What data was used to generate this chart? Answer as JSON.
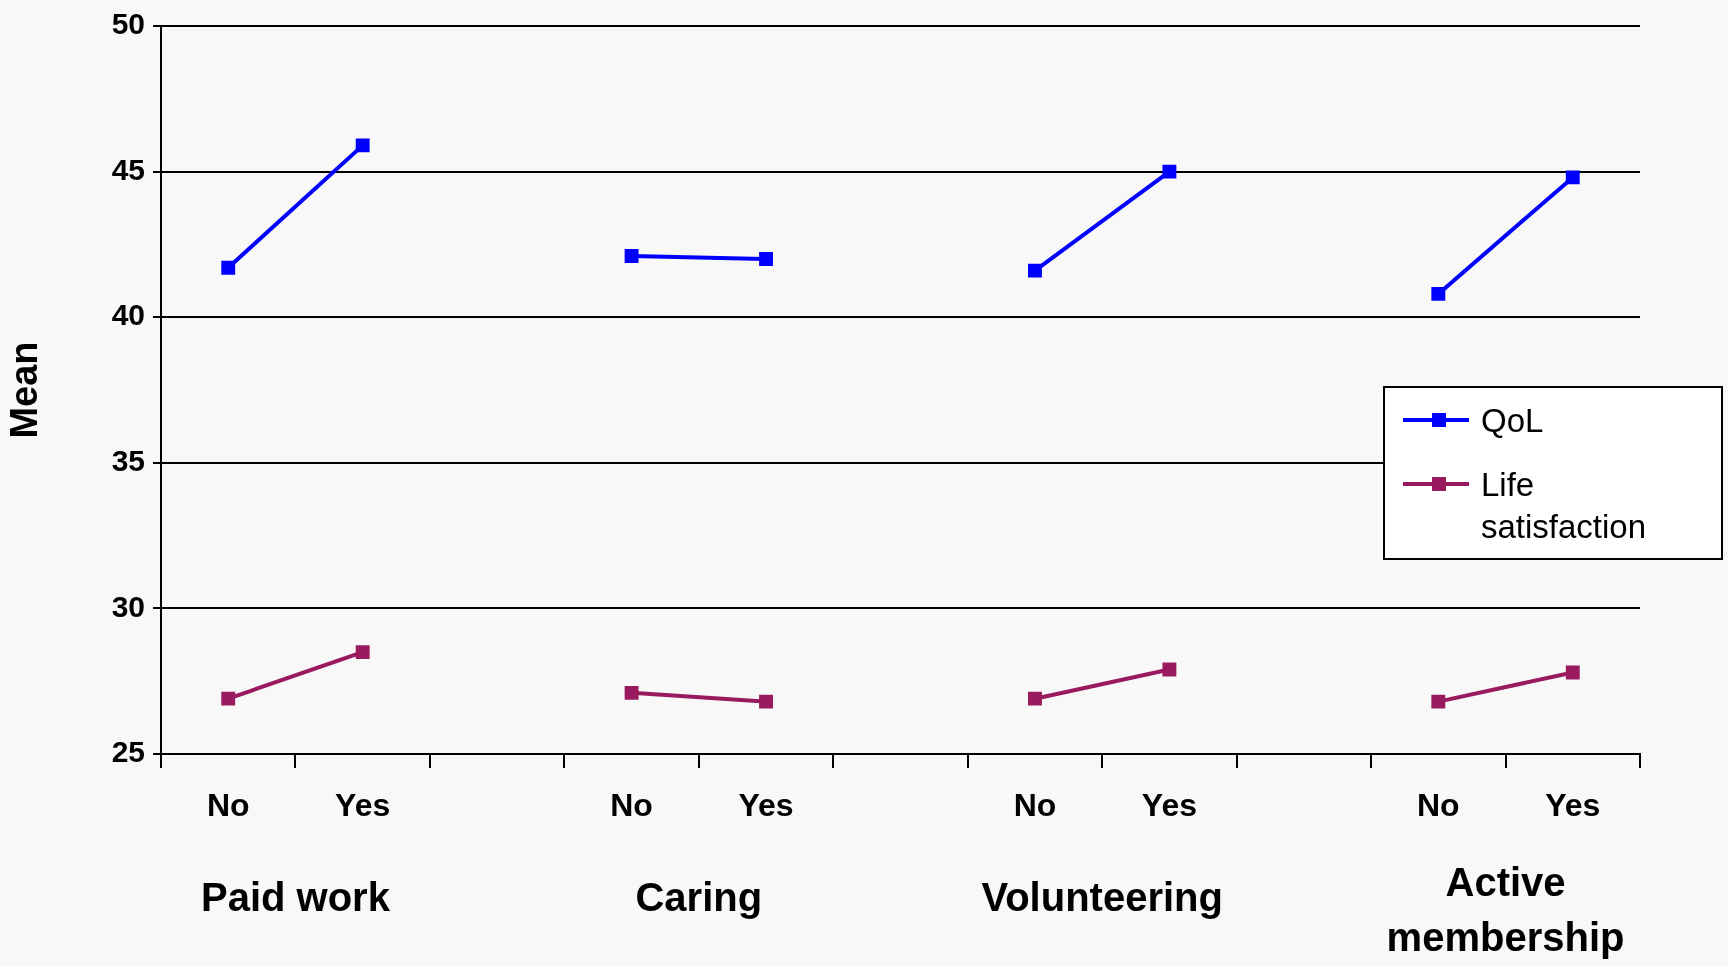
{
  "chart_data": {
    "type": "line",
    "ylabel": "Mean",
    "categories": [
      "No",
      "Yes",
      null,
      "No",
      "Yes",
      null,
      "No",
      "Yes",
      null,
      "No",
      "Yes"
    ],
    "annotations": [
      "Paid work",
      "Caring",
      "Volunteering",
      "Active membership"
    ],
    "series": [
      {
        "name": "QoL",
        "color": "#0000ff",
        "values": [
          41.7,
          45.9,
          null,
          42.1,
          42.0,
          null,
          41.6,
          45.0,
          null,
          40.8,
          44.8
        ]
      },
      {
        "name": "Life satisfaction",
        "color": "#991a5e",
        "values": [
          26.9,
          28.5,
          null,
          27.1,
          26.8,
          null,
          26.9,
          27.9,
          null,
          26.8,
          27.8
        ]
      }
    ],
    "ylim": [
      25,
      50
    ],
    "yticks": [
      25,
      30,
      35,
      40,
      45,
      50
    ],
    "grid": "y",
    "legend": "right",
    "marker": "square",
    "line_style": "solid"
  }
}
